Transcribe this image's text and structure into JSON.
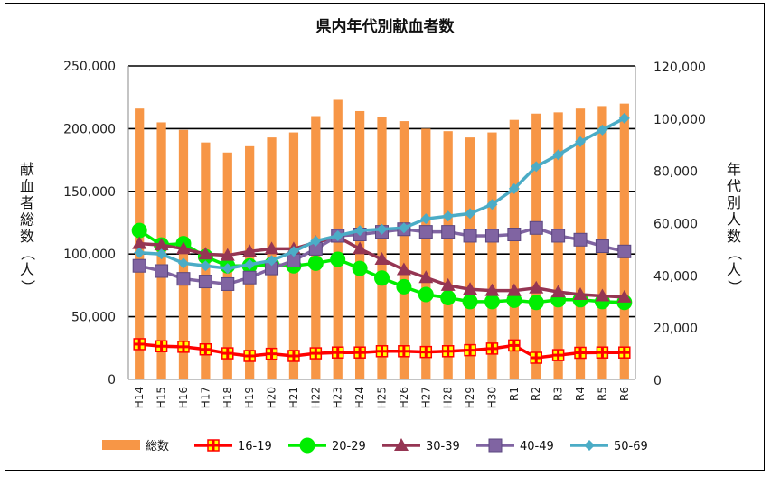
{
  "chart_data": {
    "type": "bar",
    "title": "県内年代別献血者数",
    "ylabel_left": "献血者総数（人）",
    "ylabel_right": "年代別人数（人）",
    "categories": [
      "H14",
      "H15",
      "H16",
      "H17",
      "H18",
      "H19",
      "H20",
      "H21",
      "H22",
      "H23",
      "H24",
      "H25",
      "H26",
      "H27",
      "H28",
      "H29",
      "H30",
      "R1",
      "R2",
      "R3",
      "R4",
      "R5",
      "R6"
    ],
    "y_left": {
      "min": 0,
      "max": 250000,
      "ticks": [
        "0",
        "50,000",
        "100,000",
        "150,000",
        "200,000",
        "250,000"
      ]
    },
    "y_right": {
      "min": 0,
      "max": 120000,
      "ticks": [
        "0",
        "20,000",
        "40,000",
        "60,000",
        "80,000",
        "100,000",
        "120,000"
      ]
    },
    "grid": true,
    "legend_position": "bottom",
    "bar_series": {
      "name": "総数",
      "axis": "left",
      "color": "#f79646",
      "values": [
        216000,
        205000,
        199000,
        189000,
        181000,
        186000,
        193000,
        197000,
        210000,
        223000,
        214000,
        209000,
        206000,
        200000,
        198000,
        193000,
        197000,
        207000,
        212000,
        213000,
        216000,
        218000,
        220000
      ]
    },
    "line_series": [
      {
        "name": "16-19",
        "axis": "right",
        "color": "#ff0000",
        "marker": "cross-square",
        "values": [
          13500,
          12700,
          12500,
          11500,
          10000,
          9000,
          9800,
          9000,
          10000,
          10300,
          10300,
          10800,
          10800,
          10500,
          10800,
          11200,
          11800,
          13000,
          8300,
          9300,
          10200,
          10300,
          10300
        ]
      },
      {
        "name": "20-29",
        "axis": "right",
        "color": "#00ee00",
        "marker": "circle",
        "values": [
          57000,
          51500,
          52000,
          47000,
          43500,
          43500,
          44000,
          43500,
          44500,
          46000,
          42500,
          38800,
          35500,
          32500,
          31300,
          29800,
          29800,
          30300,
          29500,
          30500,
          30500,
          29800,
          29500
        ]
      },
      {
        "name": "30-39",
        "axis": "right",
        "color": "#953553",
        "marker": "triangle",
        "values": [
          52000,
          51500,
          50000,
          48000,
          47500,
          49000,
          50000,
          50000,
          52500,
          54500,
          50000,
          46000,
          42000,
          39000,
          36000,
          34500,
          34000,
          34000,
          35000,
          33500,
          32500,
          32000,
          31500
        ]
      },
      {
        "name": "40-49",
        "axis": "right",
        "color": "#8064a2",
        "marker": "square",
        "values": [
          43500,
          41500,
          38500,
          37500,
          36500,
          39000,
          42500,
          45500,
          50000,
          55000,
          55500,
          56500,
          57500,
          56500,
          56500,
          55000,
          55000,
          55500,
          58000,
          55000,
          53500,
          51000,
          49000
        ]
      },
      {
        "name": "50-69",
        "axis": "right",
        "color": "#4bacc6",
        "marker": "diamond",
        "values": [
          48500,
          48000,
          44500,
          43500,
          42500,
          44000,
          45500,
          49000,
          53000,
          55000,
          57000,
          57500,
          58000,
          61500,
          62500,
          63500,
          67000,
          73000,
          81500,
          86000,
          91000,
          95500,
          100000
        ]
      }
    ]
  }
}
